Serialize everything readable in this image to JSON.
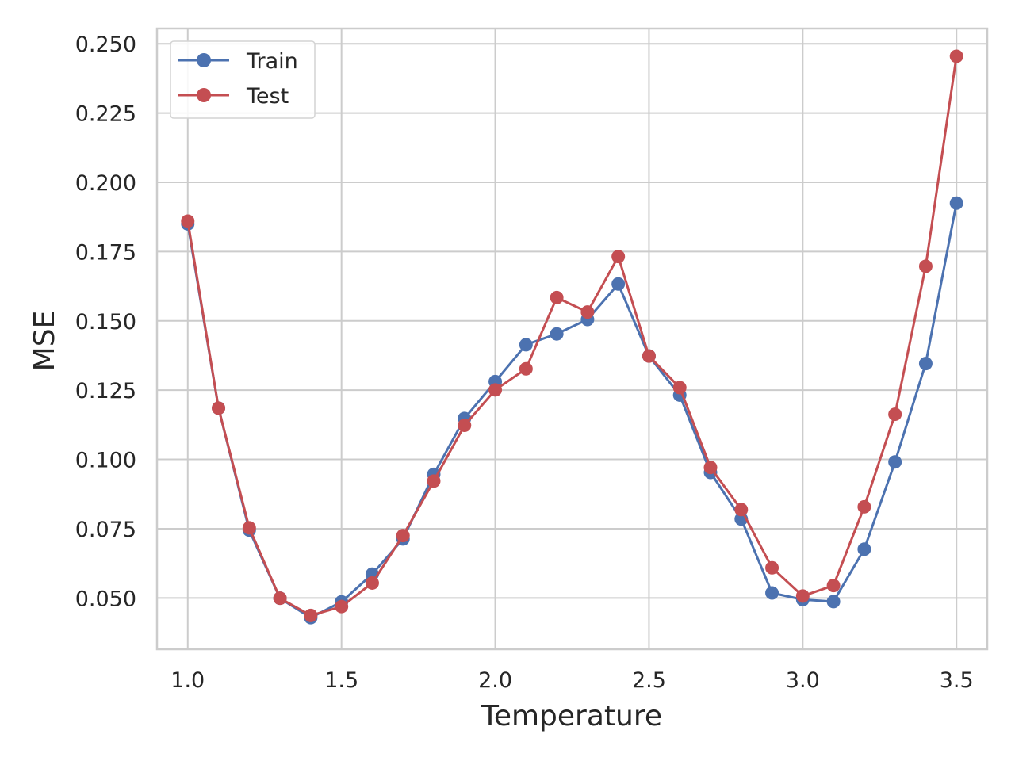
{
  "chart_data": {
    "type": "line",
    "title": "",
    "xlabel": "Temperature",
    "ylabel": "MSE",
    "xlim": [
      0.9,
      3.6
    ],
    "ylim": [
      0.0315,
      0.2555
    ],
    "xticks": [
      1.0,
      1.5,
      2.0,
      2.5,
      3.0,
      3.5
    ],
    "xtick_labels": [
      "1.0",
      "1.5",
      "2.0",
      "2.5",
      "3.0",
      "3.5"
    ],
    "yticks": [
      0.05,
      0.075,
      0.1,
      0.125,
      0.15,
      0.175,
      0.2,
      0.225,
      0.25
    ],
    "ytick_labels": [
      "0.050",
      "0.075",
      "0.100",
      "0.125",
      "0.150",
      "0.175",
      "0.200",
      "0.225",
      "0.250"
    ],
    "grid": true,
    "legend_position": "top-left",
    "x": [
      1.0,
      1.1,
      1.2,
      1.3,
      1.4,
      1.5,
      1.6,
      1.7,
      1.8,
      1.9,
      2.0,
      2.1,
      2.2,
      2.3,
      2.4,
      2.5,
      2.6,
      2.7,
      2.8,
      2.9,
      3.0,
      3.1,
      3.2,
      3.3,
      3.4,
      3.5
    ],
    "series": [
      {
        "name": "Train",
        "color": "#4c72b0",
        "marker": "circle",
        "values": [
          0.185,
          0.1185,
          0.0745,
          0.0499,
          0.0429,
          0.0486,
          0.0586,
          0.0713,
          0.0946,
          0.1148,
          0.1281,
          0.1414,
          0.1453,
          0.1505,
          0.1633,
          0.1373,
          0.1232,
          0.0953,
          0.0785,
          0.0518,
          0.0494,
          0.0487,
          0.0676,
          0.0991,
          0.1346,
          0.1925
        ]
      },
      {
        "name": "Test",
        "color": "#c44e52",
        "marker": "circle",
        "values": [
          0.186,
          0.1185,
          0.0753,
          0.0499,
          0.0437,
          0.0469,
          0.0554,
          0.0725,
          0.0922,
          0.1123,
          0.1251,
          0.1327,
          0.1584,
          0.1532,
          0.1732,
          0.1373,
          0.1259,
          0.0971,
          0.0819,
          0.0609,
          0.0507,
          0.0545,
          0.0829,
          0.1163,
          0.1697,
          0.2455
        ]
      }
    ]
  }
}
